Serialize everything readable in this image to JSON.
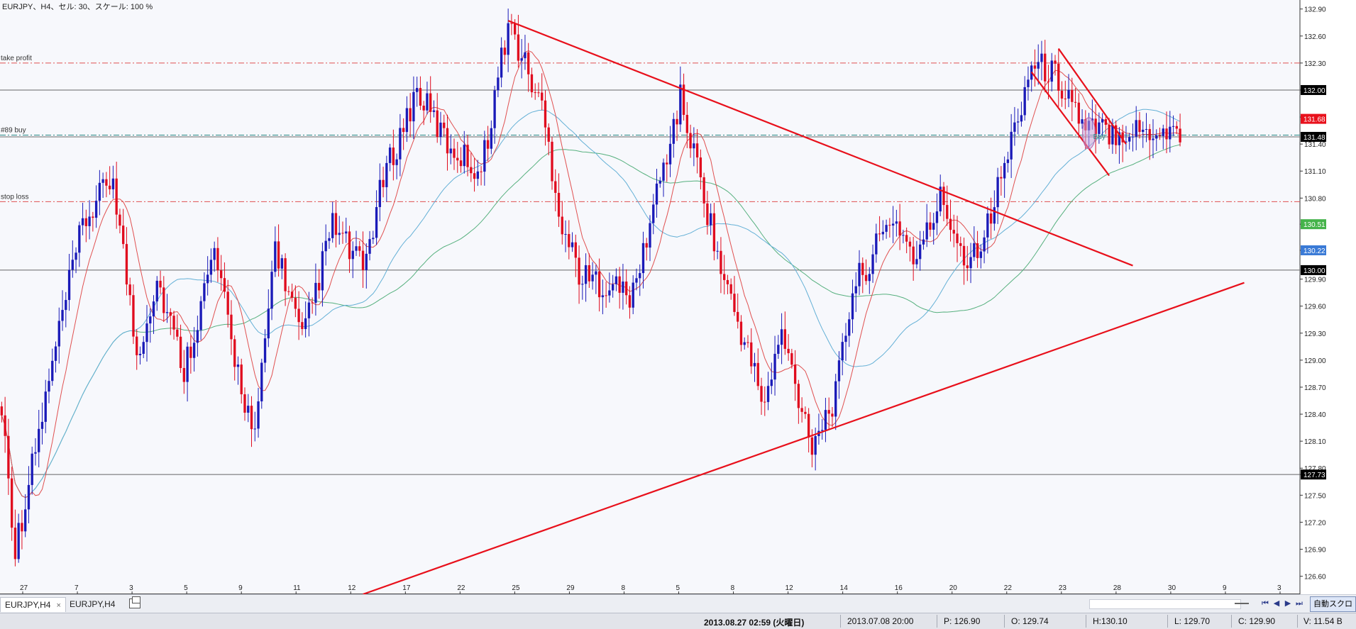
{
  "chart_data": {
    "type": "candlestick",
    "title": "EURJPY、H4、セル: 30、スケール: 100 %",
    "symbol": "EURJPY",
    "timeframe": "H4",
    "y_axis": {
      "position": "right",
      "ylim": [
        126.4,
        133.0
      ],
      "ticks": [
        "132.90",
        "132.60",
        "132.30",
        "132.00",
        "131.70",
        "131.40",
        "131.10",
        "130.80",
        "130.51",
        "130.22",
        "129.90",
        "129.60",
        "129.30",
        "129.00",
        "128.70",
        "128.40",
        "128.10",
        "127.80",
        "127.73",
        "127.50",
        "127.20",
        "126.90",
        "126.60"
      ],
      "price_labels": [
        {
          "value": 132.0,
          "label": "132.00",
          "bg": "#000000",
          "fg": "#ffffff"
        },
        {
          "value": 131.68,
          "label": "131.68",
          "bg": "#e8101b",
          "fg": "#ffffff"
        },
        {
          "value": 131.48,
          "label": "131.48",
          "bg": "#000000",
          "fg": "#ffffff"
        },
        {
          "value": 130.51,
          "label": "130.51",
          "bg": "#45b34a",
          "fg": "#ffffff"
        },
        {
          "value": 130.22,
          "label": "130.22",
          "bg": "#3a7ad6",
          "fg": "#ffffff"
        },
        {
          "value": 130.0,
          "label": "130.00",
          "bg": "#000000",
          "fg": "#ffffff"
        },
        {
          "value": 127.73,
          "label": "127.73",
          "bg": "#000000",
          "fg": "#ffffff"
        }
      ]
    },
    "x_axis": {
      "labels": [
        "27",
        "7",
        "3",
        "5",
        "9",
        "11",
        "12",
        "17",
        "22",
        "25",
        "29",
        "8",
        "5",
        "8",
        "12",
        "14",
        "16",
        "20",
        "22",
        "23",
        "28",
        "30",
        "9",
        "3"
      ],
      "data_bars": 350,
      "total_bars": 385
    },
    "levels": [
      {
        "name": "take profit",
        "value": 132.3,
        "color": "#e05050",
        "style": "dashdot"
      },
      {
        "name": "#89 buy",
        "value": 131.5,
        "color": "#2a8a86",
        "style": "dashdot"
      },
      {
        "name": "stop loss",
        "value": 130.76,
        "color": "#e05050",
        "style": "dashdot"
      }
    ],
    "horizontal_lines": [
      132.0,
      131.48,
      130.0,
      127.73
    ],
    "trendlines": [
      {
        "from": [
          150,
          132.77
        ],
        "to": [
          335,
          130.05
        ]
      },
      {
        "from": [
          107,
          126.4
        ],
        "to": [
          368,
          129.86
        ]
      },
      {
        "from": [
          313,
          132.46
        ],
        "to": [
          333,
          131.4
        ]
      },
      {
        "from": [
          305,
          132.2
        ],
        "to": [
          328,
          131.05
        ]
      }
    ],
    "buy_marker": {
      "label": "Buy",
      "bar": 322,
      "value": 131.52
    },
    "colors": {
      "bull": "#1a1ab8",
      "bear": "#e00b1e",
      "ma_fast": "#e05050",
      "ma_mid": "#64b0d6",
      "ma_slow": "#56b07e",
      "trendline": "#e8101b"
    },
    "anchors": [
      [
        0,
        128.5
      ],
      [
        4,
        126.9
      ],
      [
        10,
        128.0
      ],
      [
        18,
        129.5
      ],
      [
        24,
        130.5
      ],
      [
        33,
        131.05
      ],
      [
        40,
        129.05
      ],
      [
        46,
        129.9
      ],
      [
        54,
        128.9
      ],
      [
        63,
        130.2
      ],
      [
        68,
        129.2
      ],
      [
        75,
        128.1
      ],
      [
        81,
        130.3
      ],
      [
        89,
        129.2
      ],
      [
        98,
        130.5
      ],
      [
        107,
        130.0
      ],
      [
        113,
        131.0
      ],
      [
        123,
        132.0
      ],
      [
        132,
        131.4
      ],
      [
        142,
        131.1
      ],
      [
        150,
        132.75
      ],
      [
        160,
        131.8
      ],
      [
        166,
        130.5
      ],
      [
        172,
        129.9
      ],
      [
        180,
        129.85
      ],
      [
        187,
        129.7
      ],
      [
        193,
        130.7
      ],
      [
        201,
        131.9
      ],
      [
        207,
        131.0
      ],
      [
        213,
        130.0
      ],
      [
        220,
        129.2
      ],
      [
        226,
        128.5
      ],
      [
        231,
        129.3
      ],
      [
        236,
        128.6
      ],
      [
        240,
        128.1
      ],
      [
        247,
        128.6
      ],
      [
        252,
        129.8
      ],
      [
        257,
        130.1
      ],
      [
        264,
        130.6
      ],
      [
        271,
        130.1
      ],
      [
        278,
        130.8
      ],
      [
        286,
        130.1
      ],
      [
        292,
        130.5
      ],
      [
        298,
        131.3
      ],
      [
        305,
        132.3
      ],
      [
        311,
        132.2
      ],
      [
        317,
        131.9
      ],
      [
        321,
        131.5
      ],
      [
        322,
        131.55
      ]
    ]
  },
  "tabs": [
    {
      "label": "EURJPY,H4",
      "close": "×"
    },
    {
      "label": "EURJPY,H4"
    }
  ],
  "controls": {
    "nav_first": "⏮",
    "nav_prev": "◀",
    "nav_next": "▶",
    "nav_last": "⏭",
    "auto_scroll": "自動スクロール"
  },
  "status_bar": {
    "datetime": "2013.08.27 02:59 (火曜日)",
    "bar_time": "2013.07.08 20:00",
    "price": "P: 126.90",
    "open": "O: 129.74",
    "high": "H:130.10",
    "low": "L: 129.70",
    "close": "C: 129.90",
    "volume": "V: 11.54 B"
  }
}
